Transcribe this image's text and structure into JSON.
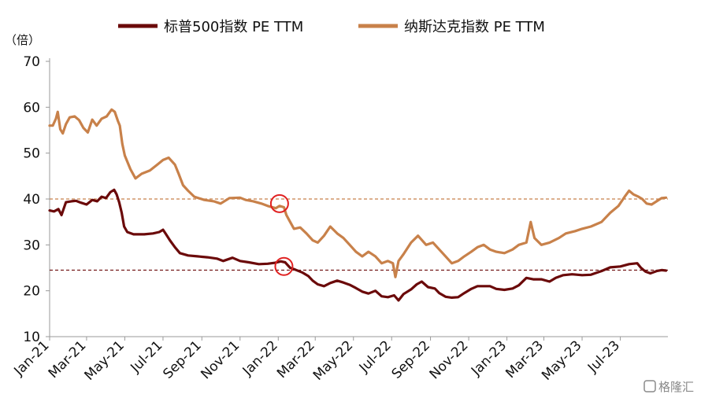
{
  "chart_data": {
    "type": "line",
    "unit_label": "（倍）",
    "ylim": [
      10,
      70
    ],
    "yticks": [
      10,
      20,
      30,
      40,
      50,
      60,
      70
    ],
    "x_start": "2021-01-01",
    "x_end": "2023-09-15",
    "xtick_labels": [
      "Jan-21",
      "Mar-21",
      "May-21",
      "Jul-21",
      "Sep-21",
      "Nov-21",
      "Jan-22",
      "Mar-22",
      "May-22",
      "Jul-22",
      "Sep-22",
      "Nov-22",
      "Jan-23",
      "Mar-23",
      "May-23",
      "Jul-23"
    ],
    "xtick_dates": [
      "2021-01-01",
      "2021-03-01",
      "2021-05-01",
      "2021-07-01",
      "2021-09-01",
      "2021-11-01",
      "2022-01-01",
      "2022-03-01",
      "2022-05-01",
      "2022-07-01",
      "2022-09-01",
      "2022-11-01",
      "2023-01-01",
      "2023-03-01",
      "2023-05-01",
      "2023-07-01"
    ],
    "series": [
      {
        "name": "标普500指数 PE TTM",
        "color": "#6b0a0a",
        "points": [
          [
            "2021-01-01",
            37.5
          ],
          [
            "2021-01-08",
            37.3
          ],
          [
            "2021-01-15",
            37.8
          ],
          [
            "2021-01-20",
            36.5
          ],
          [
            "2021-01-27",
            39.3
          ],
          [
            "2021-02-05",
            39.5
          ],
          [
            "2021-02-12",
            39.6
          ],
          [
            "2021-02-20",
            39.2
          ],
          [
            "2021-03-01",
            38.8
          ],
          [
            "2021-03-10",
            39.8
          ],
          [
            "2021-03-18",
            39.5
          ],
          [
            "2021-03-25",
            40.5
          ],
          [
            "2021-04-01",
            40.2
          ],
          [
            "2021-04-08",
            41.5
          ],
          [
            "2021-04-14",
            42.0
          ],
          [
            "2021-04-18",
            41.0
          ],
          [
            "2021-04-22",
            39.3
          ],
          [
            "2021-04-26",
            37.0
          ],
          [
            "2021-04-30",
            34.0
          ],
          [
            "2021-05-05",
            32.8
          ],
          [
            "2021-05-15",
            32.3
          ],
          [
            "2021-06-01",
            32.3
          ],
          [
            "2021-06-15",
            32.5
          ],
          [
            "2021-06-25",
            32.8
          ],
          [
            "2021-07-01",
            33.3
          ],
          [
            "2021-07-05",
            32.5
          ],
          [
            "2021-07-12",
            31.0
          ],
          [
            "2021-07-20",
            29.5
          ],
          [
            "2021-07-28",
            28.2
          ],
          [
            "2021-08-10",
            27.7
          ],
          [
            "2021-08-25",
            27.5
          ],
          [
            "2021-09-10",
            27.3
          ],
          [
            "2021-09-25",
            27.0
          ],
          [
            "2021-10-05",
            26.5
          ],
          [
            "2021-10-20",
            27.2
          ],
          [
            "2021-11-01",
            26.5
          ],
          [
            "2021-11-15",
            26.2
          ],
          [
            "2021-12-01",
            25.8
          ],
          [
            "2021-12-15",
            25.9
          ],
          [
            "2021-12-27",
            26.1
          ],
          [
            "2022-01-05",
            26.4
          ],
          [
            "2022-01-12",
            26.2
          ],
          [
            "2022-01-20",
            25.0
          ],
          [
            "2022-01-28",
            24.6
          ],
          [
            "2022-02-08",
            24.0
          ],
          [
            "2022-02-18",
            23.2
          ],
          [
            "2022-02-25",
            22.2
          ],
          [
            "2022-03-05",
            21.4
          ],
          [
            "2022-03-15",
            21.0
          ],
          [
            "2022-03-25",
            21.7
          ],
          [
            "2022-04-05",
            22.2
          ],
          [
            "2022-04-15",
            21.8
          ],
          [
            "2022-04-25",
            21.3
          ],
          [
            "2022-05-05",
            20.6
          ],
          [
            "2022-05-15",
            19.8
          ],
          [
            "2022-05-25",
            19.4
          ],
          [
            "2022-06-05",
            20.0
          ],
          [
            "2022-06-15",
            18.8
          ],
          [
            "2022-06-25",
            18.6
          ],
          [
            "2022-07-05",
            19.0
          ],
          [
            "2022-07-12",
            17.9
          ],
          [
            "2022-07-20",
            19.3
          ],
          [
            "2022-08-01",
            20.3
          ],
          [
            "2022-08-10",
            21.4
          ],
          [
            "2022-08-18",
            22.0
          ],
          [
            "2022-08-28",
            20.8
          ],
          [
            "2022-09-08",
            20.5
          ],
          [
            "2022-09-15",
            19.5
          ],
          [
            "2022-09-25",
            18.7
          ],
          [
            "2022-10-05",
            18.5
          ],
          [
            "2022-10-15",
            18.6
          ],
          [
            "2022-10-25",
            19.5
          ],
          [
            "2022-11-05",
            20.4
          ],
          [
            "2022-11-15",
            21.0
          ],
          [
            "2022-11-25",
            21.0
          ],
          [
            "2022-12-05",
            21.0
          ],
          [
            "2022-12-15",
            20.4
          ],
          [
            "2022-12-28",
            20.2
          ],
          [
            "2023-01-10",
            20.5
          ],
          [
            "2023-01-20",
            21.2
          ],
          [
            "2023-02-01",
            22.8
          ],
          [
            "2023-02-12",
            22.5
          ],
          [
            "2023-02-25",
            22.5
          ],
          [
            "2023-03-10",
            22.0
          ],
          [
            "2023-03-20",
            22.8
          ],
          [
            "2023-04-01",
            23.4
          ],
          [
            "2023-04-15",
            23.6
          ],
          [
            "2023-05-01",
            23.4
          ],
          [
            "2023-05-15",
            23.5
          ],
          [
            "2023-06-01",
            24.3
          ],
          [
            "2023-06-15",
            25.1
          ],
          [
            "2023-07-01",
            25.3
          ],
          [
            "2023-07-15",
            25.8
          ],
          [
            "2023-07-28",
            26.0
          ],
          [
            "2023-08-03",
            25.0
          ],
          [
            "2023-08-10",
            24.2
          ],
          [
            "2023-08-18",
            23.8
          ],
          [
            "2023-08-28",
            24.3
          ],
          [
            "2023-09-05",
            24.5
          ],
          [
            "2023-09-12",
            24.4
          ]
        ]
      },
      {
        "name": "纳斯达克指数 PE TTM",
        "color": "#c8814a",
        "points": [
          [
            "2021-01-01",
            56.0
          ],
          [
            "2021-01-06",
            56.0
          ],
          [
            "2021-01-11",
            57.5
          ],
          [
            "2021-01-14",
            59.0
          ],
          [
            "2021-01-18",
            55.2
          ],
          [
            "2021-01-22",
            54.3
          ],
          [
            "2021-01-27",
            56.3
          ],
          [
            "2021-02-02",
            57.8
          ],
          [
            "2021-02-10",
            58.0
          ],
          [
            "2021-02-17",
            57.2
          ],
          [
            "2021-02-24",
            55.5
          ],
          [
            "2021-03-03",
            54.5
          ],
          [
            "2021-03-10",
            57.3
          ],
          [
            "2021-03-17",
            56.0
          ],
          [
            "2021-03-25",
            57.5
          ],
          [
            "2021-04-02",
            58.0
          ],
          [
            "2021-04-10",
            59.5
          ],
          [
            "2021-04-15",
            59.0
          ],
          [
            "2021-04-20",
            57.0
          ],
          [
            "2021-04-23",
            56.0
          ],
          [
            "2021-04-27",
            52.0
          ],
          [
            "2021-05-01",
            49.5
          ],
          [
            "2021-05-10",
            46.5
          ],
          [
            "2021-05-18",
            44.5
          ],
          [
            "2021-05-28",
            45.5
          ],
          [
            "2021-06-10",
            46.2
          ],
          [
            "2021-06-22",
            47.5
          ],
          [
            "2021-07-01",
            48.5
          ],
          [
            "2021-07-10",
            49.0
          ],
          [
            "2021-07-20",
            47.5
          ],
          [
            "2021-07-26",
            45.5
          ],
          [
            "2021-08-02",
            43.0
          ],
          [
            "2021-08-10",
            41.8
          ],
          [
            "2021-08-20",
            40.5
          ],
          [
            "2021-09-05",
            39.8
          ],
          [
            "2021-09-20",
            39.5
          ],
          [
            "2021-10-01",
            39.0
          ],
          [
            "2021-10-15",
            40.2
          ],
          [
            "2021-11-01",
            40.3
          ],
          [
            "2021-11-10",
            39.8
          ],
          [
            "2021-11-22",
            39.5
          ],
          [
            "2021-12-05",
            39.0
          ],
          [
            "2021-12-15",
            38.5
          ],
          [
            "2021-12-28",
            38.0
          ],
          [
            "2022-01-03",
            38.5
          ],
          [
            "2022-01-10",
            38.2
          ],
          [
            "2022-01-14",
            36.5
          ],
          [
            "2022-01-20",
            35.0
          ],
          [
            "2022-01-26",
            33.5
          ],
          [
            "2022-02-05",
            33.8
          ],
          [
            "2022-02-15",
            32.5
          ],
          [
            "2022-02-25",
            31.0
          ],
          [
            "2022-03-05",
            30.5
          ],
          [
            "2022-03-15",
            32.0
          ],
          [
            "2022-03-25",
            34.0
          ],
          [
            "2022-04-05",
            32.5
          ],
          [
            "2022-04-15",
            31.5
          ],
          [
            "2022-04-25",
            30.0
          ],
          [
            "2022-05-05",
            28.5
          ],
          [
            "2022-05-15",
            27.5
          ],
          [
            "2022-05-25",
            28.5
          ],
          [
            "2022-06-05",
            27.5
          ],
          [
            "2022-06-15",
            26.0
          ],
          [
            "2022-06-25",
            26.5
          ],
          [
            "2022-07-03",
            26.0
          ],
          [
            "2022-07-07",
            23.0
          ],
          [
            "2022-07-12",
            26.5
          ],
          [
            "2022-07-20",
            28.0
          ],
          [
            "2022-08-01",
            30.5
          ],
          [
            "2022-08-12",
            32.0
          ],
          [
            "2022-08-25",
            30.0
          ],
          [
            "2022-09-05",
            30.5
          ],
          [
            "2022-09-15",
            29.0
          ],
          [
            "2022-09-25",
            27.5
          ],
          [
            "2022-10-05",
            26.0
          ],
          [
            "2022-10-15",
            26.5
          ],
          [
            "2022-10-25",
            27.5
          ],
          [
            "2022-11-05",
            28.5
          ],
          [
            "2022-11-15",
            29.5
          ],
          [
            "2022-11-25",
            30.0
          ],
          [
            "2022-12-05",
            29.0
          ],
          [
            "2022-12-15",
            28.5
          ],
          [
            "2022-12-28",
            28.2
          ],
          [
            "2023-01-10",
            29.0
          ],
          [
            "2023-01-20",
            30.0
          ],
          [
            "2023-02-01",
            30.5
          ],
          [
            "2023-02-08",
            35.0
          ],
          [
            "2023-02-14",
            31.5
          ],
          [
            "2023-02-25",
            30.0
          ],
          [
            "2023-03-10",
            30.5
          ],
          [
            "2023-03-25",
            31.5
          ],
          [
            "2023-04-05",
            32.5
          ],
          [
            "2023-04-20",
            33.0
          ],
          [
            "2023-05-01",
            33.5
          ],
          [
            "2023-05-15",
            34.0
          ],
          [
            "2023-06-01",
            35.0
          ],
          [
            "2023-06-15",
            37.0
          ],
          [
            "2023-06-28",
            38.5
          ],
          [
            "2023-07-08",
            40.5
          ],
          [
            "2023-07-15",
            41.8
          ],
          [
            "2023-07-22",
            41.0
          ],
          [
            "2023-07-30",
            40.5
          ],
          [
            "2023-08-05",
            40.0
          ],
          [
            "2023-08-12",
            39.0
          ],
          [
            "2023-08-20",
            38.8
          ],
          [
            "2023-08-28",
            39.5
          ],
          [
            "2023-09-05",
            40.2
          ],
          [
            "2023-09-12",
            40.3
          ]
        ]
      }
    ],
    "reference_lines": [
      {
        "y": 40.0,
        "color": "#c8814a",
        "style": "dashed"
      },
      {
        "y": 24.5,
        "color": "#6b0a0a",
        "style": "dashed"
      }
    ],
    "annotations": [
      {
        "type": "circle",
        "date": "2022-01-03",
        "y": 39.0,
        "color": "#e02020"
      },
      {
        "type": "circle",
        "date": "2022-01-10",
        "y": 25.3,
        "color": "#e02020"
      }
    ],
    "grid": false,
    "legend_position": "top"
  },
  "watermark": "格隆汇"
}
